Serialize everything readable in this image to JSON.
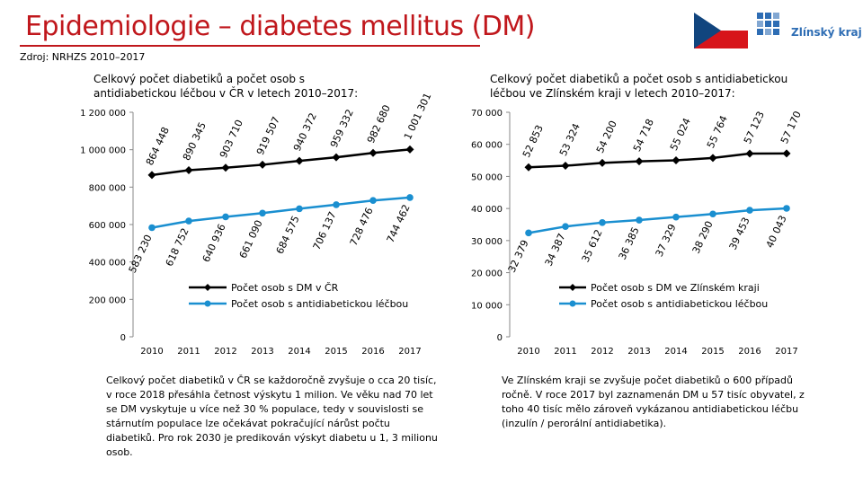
{
  "page": {
    "title": "Epidemiologie – diabetes mellitus (DM)",
    "source": "Zdroj: NRHZS 2010–2017",
    "logo_text": "Zlínský kraj",
    "flag_colors": {
      "white": "#ffffff",
      "red": "#d7141a",
      "blue": "#11457e"
    },
    "title_color": "#c0171c",
    "logo_color": "#2e6db4"
  },
  "chart_data": [
    {
      "type": "line",
      "title": "Celkový počet diabetiků a počet osob s antidiabetickou léčbou v ČR v letech 2010–2017:",
      "categories": [
        "2010",
        "2011",
        "2012",
        "2013",
        "2014",
        "2015",
        "2016",
        "2017"
      ],
      "y_ticks": [
        "0",
        "200 000",
        "400 000",
        "600 000",
        "800 000",
        "1 000 000",
        "1 200 000"
      ],
      "ylim": [
        0,
        1200000
      ],
      "legend_position": "bottom-center",
      "series": [
        {
          "name": "Počet osob s DM v ČR",
          "color": "#000000",
          "marker": "diamond",
          "values": [
            864448,
            890345,
            903710,
            919507,
            940372,
            959332,
            982680,
            1001301
          ],
          "labels": [
            "864 448",
            "890 345",
            "903 710",
            "919 507",
            "940 372",
            "959 332",
            "982 680",
            "1 001 301"
          ]
        },
        {
          "name": "Počet osob s antidiabetickou léčbou",
          "color": "#1a8fd0",
          "marker": "circle",
          "values": [
            583230,
            618752,
            640936,
            661090,
            684575,
            706137,
            728476,
            744462
          ],
          "labels": [
            "583 230",
            "618 752",
            "640 936",
            "661 090",
            "684 575",
            "706 137",
            "728 476",
            "744 462"
          ]
        }
      ]
    },
    {
      "type": "line",
      "title": "Celkový počet diabetiků a počet osob s antidiabetickou léčbou ve Zlínském kraji v letech 2010–2017:",
      "categories": [
        "2010",
        "2011",
        "2012",
        "2013",
        "2014",
        "2015",
        "2016",
        "2017"
      ],
      "y_ticks": [
        "0",
        "10 000",
        "20 000",
        "30 000",
        "40 000",
        "50 000",
        "60 000",
        "70 000"
      ],
      "ylim": [
        0,
        70000
      ],
      "legend_position": "bottom-center",
      "series": [
        {
          "name": "Počet osob s DM ve Zlínském kraji",
          "color": "#000000",
          "marker": "diamond",
          "values": [
            52853,
            53324,
            54200,
            54718,
            55024,
            55764,
            57123,
            57170
          ],
          "labels": [
            "52 853",
            "53 324",
            "54 200",
            "54 718",
            "55 024",
            "55 764",
            "57 123",
            "57 170"
          ]
        },
        {
          "name": "Počet osob s antidiabetickou léčbou",
          "color": "#1a8fd0",
          "marker": "circle",
          "values": [
            32379,
            34387,
            35612,
            36385,
            37329,
            38290,
            39453,
            40043
          ],
          "labels": [
            "32 379",
            "34 387",
            "35 612",
            "36 385",
            "37 329",
            "38 290",
            "39 453",
            "40 043"
          ]
        }
      ]
    }
  ],
  "notes": {
    "left": "Celkový počet diabetiků v ČR se každoročně zvyšuje o cca 20 tisíc, v roce 2018 přesáhla četnost výskytu 1 milion. Ve věku nad 70 let se DM vyskytuje u více než 30 % populace, tedy v souvislosti se stárnutím populace lze očekávat pokračující nárůst počtu diabetiků. Pro rok 2030 je predikován výskyt diabetu u 1, 3 milionu osob.",
    "right": "Ve Zlínském kraji se zvyšuje počet diabetiků o 600 případů ročně. V roce 2017 byl zaznamenán DM u 57 tisíc obyvatel, z toho 40 tisíc mělo zároveň vykázanou antidiabetickou léčbu (inzulín / perorální antidiabetika)."
  }
}
